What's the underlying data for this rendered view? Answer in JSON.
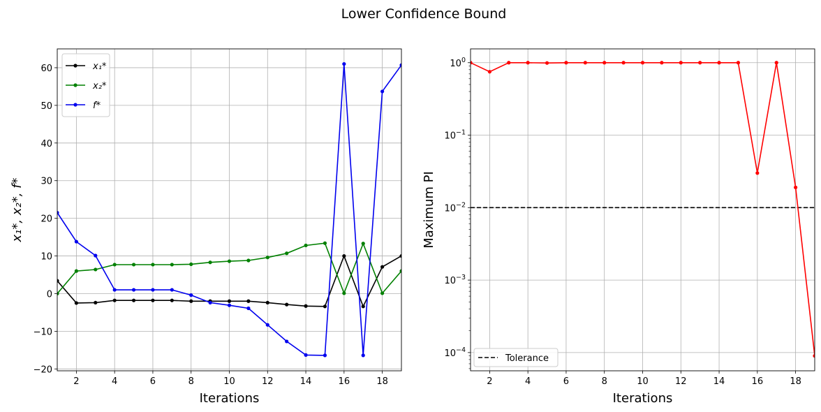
{
  "figure": {
    "suptitle": "Lower Confidence Bound"
  },
  "chart_data": [
    {
      "type": "line",
      "title": "",
      "xlabel": "Iterations",
      "ylabel": "x₁*, x₂*, f*",
      "xlim": [
        1,
        19
      ],
      "ylim": [
        -20.5,
        65
      ],
      "xticks": [
        2,
        4,
        6,
        8,
        10,
        12,
        14,
        16,
        18
      ],
      "yticks": [
        -20,
        -10,
        0,
        10,
        20,
        30,
        40,
        50,
        60
      ],
      "ytick_labels": [
        "−20",
        "−10",
        "0",
        "10",
        "20",
        "30",
        "40",
        "50",
        "60"
      ],
      "grid": true,
      "legend_position": "top-left",
      "x": [
        1,
        2,
        3,
        4,
        5,
        6,
        7,
        8,
        9,
        10,
        11,
        12,
        13,
        14,
        15,
        16,
        17,
        18,
        19
      ],
      "series": [
        {
          "name": "x₁*",
          "color": "#000000",
          "values": [
            3.4,
            -2.5,
            -2.4,
            -1.8,
            -1.8,
            -1.8,
            -1.8,
            -2.0,
            -2.0,
            -2.0,
            -2.0,
            -2.4,
            -2.9,
            -3.3,
            -3.4,
            10.0,
            -3.4,
            7.1,
            10.0
          ]
        },
        {
          "name": "x₂*",
          "color": "#008000",
          "values": [
            0.0,
            6.0,
            6.4,
            7.7,
            7.7,
            7.7,
            7.7,
            7.8,
            8.3,
            8.6,
            8.8,
            9.6,
            10.7,
            12.8,
            13.4,
            0.1,
            13.3,
            0.1,
            6.0
          ]
        },
        {
          "name": "f*",
          "color": "#0000ee",
          "values": [
            21.5,
            13.8,
            10.1,
            1.0,
            1.0,
            1.0,
            1.0,
            -0.4,
            -2.4,
            -3.1,
            -3.9,
            -8.3,
            -12.7,
            -16.3,
            -16.4,
            61.0,
            -16.4,
            53.7,
            60.7
          ]
        }
      ]
    },
    {
      "type": "line",
      "title": "",
      "xlabel": "Iterations",
      "ylabel": "Maximum PI",
      "yscale": "log",
      "xlim": [
        1,
        19
      ],
      "ylim": [
        5.6e-05,
        1.55
      ],
      "xticks": [
        2,
        4,
        6,
        8,
        10,
        12,
        14,
        16,
        18
      ],
      "yticks": [
        0.0001,
        0.001,
        0.01,
        0.1,
        1
      ],
      "ytick_labels": [
        {
          "base": "10",
          "exp": "−4"
        },
        {
          "base": "10",
          "exp": "−3"
        },
        {
          "base": "10",
          "exp": "−2"
        },
        {
          "base": "10",
          "exp": "−1"
        },
        {
          "base": "10",
          "exp": "0"
        }
      ],
      "grid": true,
      "legend_position": "bottom-left",
      "x": [
        1,
        2,
        3,
        4,
        5,
        6,
        7,
        8,
        9,
        10,
        11,
        12,
        13,
        14,
        15,
        16,
        17,
        18,
        19
      ],
      "series": [
        {
          "name": "",
          "color": "#ff0000",
          "values": [
            1.0,
            0.75,
            1.0,
            1.0,
            0.99,
            1.0,
            1.0,
            1.0,
            1.0,
            1.0,
            1.0,
            1.0,
            1.0,
            1.0,
            1.0,
            0.03,
            1.0,
            0.019,
            9e-05
          ]
        }
      ],
      "reference_line": {
        "name": "Tolerance",
        "y": 0.01,
        "color": "#000000",
        "style": "dashed"
      }
    }
  ]
}
